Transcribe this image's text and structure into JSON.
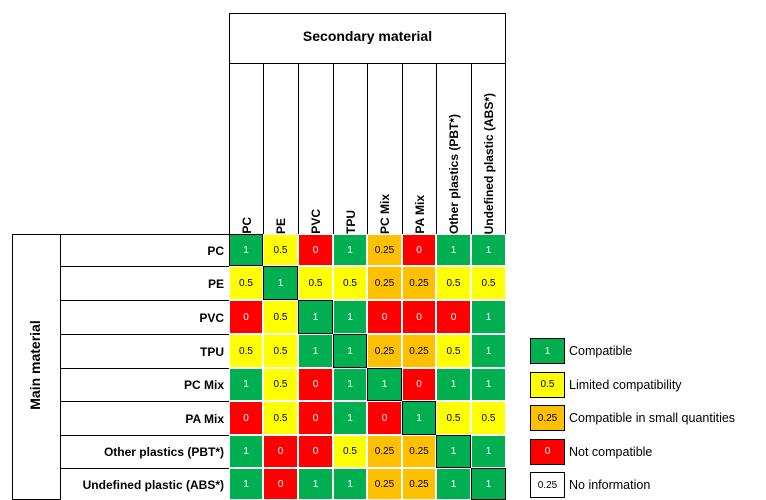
{
  "chart_data": {
    "type": "heatmap",
    "title_column_group": "Secondary material",
    "title_row_group": "Main material",
    "columns": [
      "PC",
      "PE",
      "PVC",
      "TPU",
      "PC Mix",
      "PA Mix",
      "Other plastics (PBT*)",
      "Undefined plastic (ABS*)"
    ],
    "rows": [
      "PC",
      "PE",
      "PVC",
      "TPU",
      "PC Mix",
      "PA Mix",
      "Other plastics (PBT*)",
      "Undefined plastic (ABS*)"
    ],
    "values": [
      [
        1,
        0.5,
        0,
        1,
        0.25,
        0,
        1,
        1
      ],
      [
        0.5,
        1,
        0.5,
        0.5,
        0.25,
        0.25,
        0.5,
        0.5
      ],
      [
        0,
        0.5,
        1,
        1,
        0,
        0,
        0,
        1
      ],
      [
        0.5,
        0.5,
        1,
        1,
        0.25,
        0.25,
        0.5,
        1
      ],
      [
        1,
        0.5,
        0,
        1,
        1,
        0,
        1,
        1
      ],
      [
        0,
        0.5,
        0,
        1,
        0,
        1,
        0.5,
        0.5
      ],
      [
        1,
        0,
        0,
        0.5,
        0.25,
        0.25,
        1,
        1
      ],
      [
        1,
        0,
        1,
        1,
        0.25,
        0.25,
        1,
        1
      ]
    ],
    "legend": [
      {
        "value": "1",
        "label": "Compatible",
        "color": "#00b050"
      },
      {
        "value": "0.5",
        "label": "Limited compatibility",
        "color": "#ffff00"
      },
      {
        "value": "0.25",
        "label": "Compatible in small quantities",
        "color": "#ffc000"
      },
      {
        "value": "0",
        "label": "Not compatible",
        "color": "#ff0000"
      },
      {
        "value": "0.25",
        "label": "No information",
        "color": "#ffffff"
      }
    ],
    "colors": {
      "1": "#00b050",
      "0.5": "#ffff00",
      "0.25": "#ffc000",
      "0": "#ff0000"
    },
    "grid": true,
    "legend_position": "right"
  }
}
